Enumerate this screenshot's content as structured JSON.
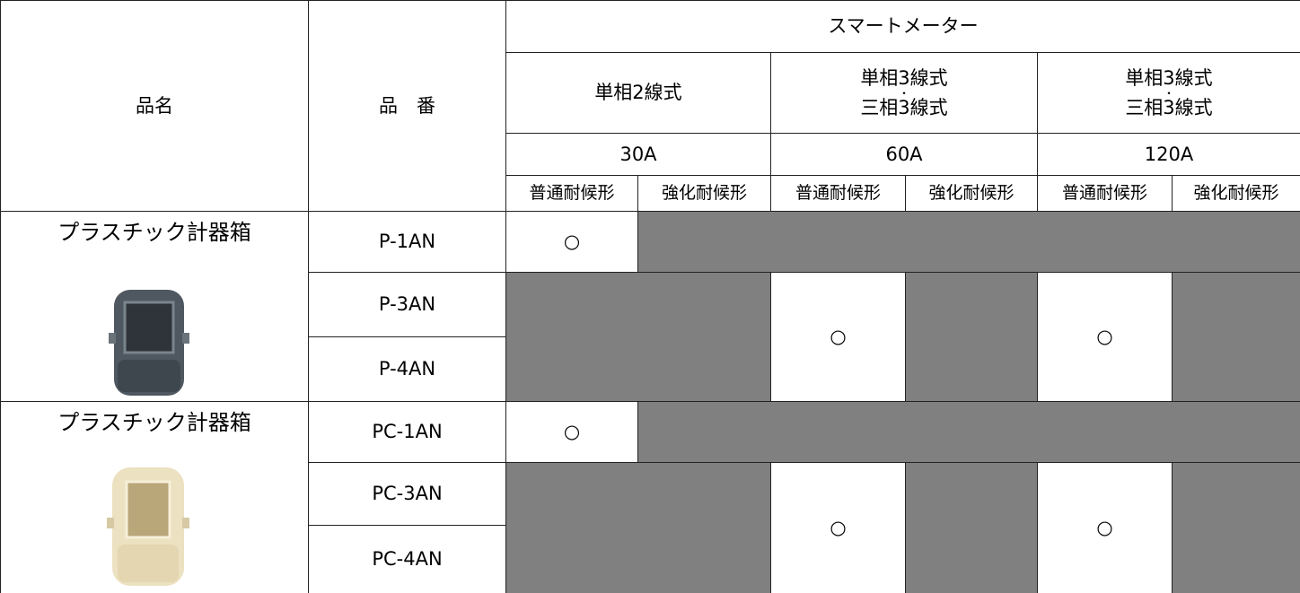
{
  "header": {
    "name": "品名",
    "number": "品　番",
    "group": "スマートメーター",
    "wiring": [
      {
        "line1": "単相2線式"
      },
      {
        "line1": "単相3線式",
        "sep": "・",
        "line2": "三相3線式"
      },
      {
        "line1": "単相3線式",
        "sep": "・",
        "line2": "三相3線式"
      }
    ],
    "amps": [
      "30A",
      "60A",
      "120A"
    ],
    "types": [
      "普通耐候形",
      "強化耐候形",
      "普通耐候形",
      "強化耐候形",
      "普通耐候形",
      "強化耐候形"
    ]
  },
  "groups": [
    {
      "name": "プラスチック計器箱",
      "codes": [
        "P-1AN",
        "P-3AN",
        "P-4AN"
      ],
      "marks": [
        "○",
        "○",
        "○"
      ]
    },
    {
      "name": "プラスチック計器箱",
      "codes": [
        "PC-1AN",
        "PC-3AN",
        "PC-4AN"
      ],
      "marks": [
        "○",
        "○",
        "○"
      ]
    }
  ]
}
